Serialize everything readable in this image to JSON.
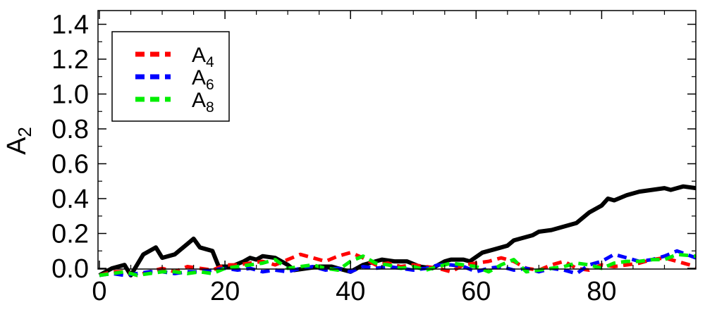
{
  "chart_data": {
    "type": "line",
    "title": "",
    "xlabel": "",
    "ylabel": "A",
    "ylabel_sub": "2",
    "xlim": [
      0,
      95
    ],
    "ylim": [
      -0.05,
      1.5
    ],
    "x_ticks": [
      0,
      20,
      40,
      60,
      80
    ],
    "x_tick_labels": [
      "0",
      "20",
      "40",
      "60",
      "80"
    ],
    "y_ticks": [
      0.0,
      0.2,
      0.4,
      0.6,
      0.8,
      1.0,
      1.2,
      1.4
    ],
    "y_tick_labels": [
      "0.0",
      "0.2",
      "0.4",
      "0.6",
      "0.8",
      "1.0",
      "1.2",
      "1.4"
    ],
    "grid": false,
    "legend_position": "top-left",
    "series": [
      {
        "name": "",
        "color": "#000000",
        "dash": "solid",
        "x": [
          0,
          2,
          4,
          5,
          7,
          9,
          10,
          12,
          14,
          15,
          16,
          18,
          19,
          21,
          23,
          24,
          25,
          26,
          28,
          30,
          31,
          33,
          35,
          37,
          38,
          40,
          42,
          44,
          45,
          47,
          49,
          51,
          53,
          55,
          56,
          58,
          59,
          61,
          63,
          65,
          66,
          67,
          69,
          70,
          72,
          73,
          75,
          76,
          78,
          80,
          81,
          82,
          84,
          86,
          88,
          90,
          91,
          93,
          95
        ],
        "y": [
          -0.04,
          0.0,
          0.02,
          -0.04,
          0.08,
          0.12,
          0.06,
          0.08,
          0.14,
          0.17,
          0.12,
          0.1,
          0.01,
          0.01,
          0.04,
          0.06,
          0.05,
          0.07,
          0.06,
          0.02,
          -0.01,
          0.0,
          0.01,
          0.01,
          0.0,
          -0.02,
          0.02,
          0.04,
          0.05,
          0.04,
          0.04,
          0.01,
          0.0,
          0.04,
          0.05,
          0.05,
          0.04,
          0.09,
          0.11,
          0.13,
          0.16,
          0.17,
          0.19,
          0.21,
          0.22,
          0.23,
          0.25,
          0.26,
          0.32,
          0.36,
          0.4,
          0.39,
          0.42,
          0.44,
          0.45,
          0.46,
          0.45,
          0.47,
          0.46
        ]
      },
      {
        "name": "A4",
        "label_main": "A",
        "label_sub": "4",
        "color": "#ff0000",
        "dash": "dashed",
        "x": [
          0,
          2,
          4,
          6,
          8,
          10,
          12,
          14,
          16,
          18,
          20,
          22,
          24,
          26,
          28,
          30,
          32,
          34,
          36,
          38,
          40,
          42,
          44,
          46,
          48,
          50,
          52,
          54,
          56,
          58,
          60,
          62,
          64,
          66,
          68,
          70,
          72,
          74,
          76,
          78,
          80,
          82,
          84,
          86,
          88,
          90,
          92,
          95
        ],
        "y": [
          -0.04,
          -0.02,
          -0.02,
          -0.04,
          -0.02,
          0.0,
          -0.02,
          0.01,
          0.0,
          -0.01,
          0.02,
          0.02,
          0.03,
          0.04,
          0.02,
          0.05,
          0.08,
          0.06,
          0.04,
          0.07,
          0.09,
          0.06,
          0.02,
          0.03,
          0.01,
          0.02,
          0.01,
          0.0,
          -0.02,
          0.02,
          0.03,
          0.04,
          0.06,
          0.04,
          0.0,
          -0.01,
          0.02,
          0.04,
          0.0,
          -0.01,
          0.02,
          0.01,
          0.02,
          0.03,
          0.05,
          0.06,
          0.04,
          0.01
        ]
      },
      {
        "name": "A6",
        "label_main": "A",
        "label_sub": "6",
        "color": "#0000ff",
        "dash": "dashed",
        "x": [
          0,
          2,
          4,
          6,
          8,
          10,
          12,
          14,
          16,
          18,
          20,
          22,
          24,
          26,
          28,
          30,
          32,
          34,
          36,
          38,
          40,
          42,
          44,
          46,
          48,
          50,
          52,
          54,
          56,
          58,
          60,
          62,
          64,
          66,
          68,
          70,
          72,
          74,
          76,
          78,
          80,
          82,
          84,
          86,
          88,
          90,
          92,
          95
        ],
        "y": [
          -0.04,
          -0.03,
          -0.04,
          -0.03,
          -0.02,
          -0.02,
          -0.03,
          -0.02,
          -0.02,
          -0.01,
          0.0,
          -0.01,
          0.0,
          -0.02,
          -0.01,
          -0.02,
          0.0,
          0.01,
          -0.01,
          0.0,
          -0.02,
          0.01,
          0.0,
          0.01,
          0.0,
          -0.01,
          0.0,
          0.02,
          0.02,
          0.01,
          -0.02,
          0.0,
          0.01,
          -0.01,
          0.0,
          -0.02,
          0.0,
          -0.01,
          -0.03,
          0.02,
          0.04,
          0.08,
          0.06,
          0.04,
          0.05,
          0.07,
          0.1,
          0.06
        ]
      },
      {
        "name": "A8",
        "label_main": "A",
        "label_sub": "8",
        "color": "#00ee00",
        "dash": "dashed",
        "x": [
          0,
          2,
          4,
          6,
          8,
          10,
          12,
          14,
          16,
          18,
          20,
          22,
          24,
          26,
          28,
          30,
          32,
          34,
          36,
          38,
          40,
          42,
          44,
          46,
          48,
          50,
          52,
          54,
          56,
          58,
          60,
          62,
          64,
          66,
          68,
          70,
          72,
          74,
          76,
          78,
          80,
          82,
          84,
          86,
          88,
          90,
          92,
          95
        ],
        "y": [
          -0.04,
          -0.03,
          -0.02,
          -0.04,
          -0.03,
          -0.02,
          -0.02,
          -0.03,
          -0.02,
          -0.03,
          0.0,
          0.01,
          0.02,
          0.03,
          0.05,
          0.0,
          0.01,
          0.02,
          0.0,
          -0.01,
          0.04,
          0.07,
          0.03,
          0.02,
          0.0,
          0.01,
          -0.01,
          0.01,
          0.03,
          0.02,
          0.01,
          -0.02,
          0.02,
          0.05,
          -0.02,
          -0.01,
          0.0,
          0.01,
          0.03,
          0.02,
          0.0,
          0.03,
          0.04,
          0.04,
          0.05,
          0.05,
          0.08,
          0.07
        ]
      }
    ]
  }
}
